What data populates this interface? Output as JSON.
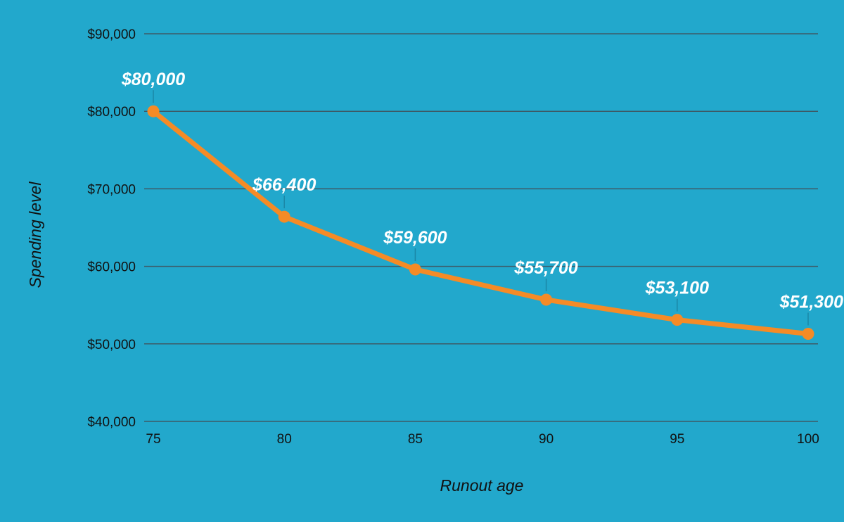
{
  "chart_data": {
    "type": "line",
    "title": "",
    "xlabel": "Runout age",
    "ylabel": "Spending level",
    "x": [
      75,
      80,
      85,
      90,
      95,
      100
    ],
    "series": [
      {
        "name": "Spending level",
        "values": [
          80000,
          66400,
          59600,
          55700,
          53100,
          51300
        ],
        "labels": [
          "$80,000",
          "$66,400",
          "$59,600",
          "$55,700",
          "$53,100",
          "$51,300"
        ]
      }
    ],
    "ylim": [
      40000,
      90000
    ],
    "xlim": [
      75,
      100
    ],
    "y_ticks": [
      40000,
      50000,
      60000,
      70000,
      80000,
      90000
    ],
    "y_tick_labels": [
      "$40,000",
      "$50,000",
      "$60,000",
      "$70,000",
      "$80,000",
      "$90,000"
    ],
    "x_ticks": [
      75,
      80,
      85,
      90,
      95,
      100
    ],
    "x_tick_labels": [
      "75",
      "80",
      "85",
      "90",
      "95",
      "100"
    ],
    "grid": true,
    "legend": "none"
  },
  "colors": {
    "background": "#22a8cc",
    "line": "#f58b26",
    "grid": "#3d5a66",
    "text": "#111111",
    "data_label": "#ffffff",
    "leader": "#1b87a6"
  }
}
